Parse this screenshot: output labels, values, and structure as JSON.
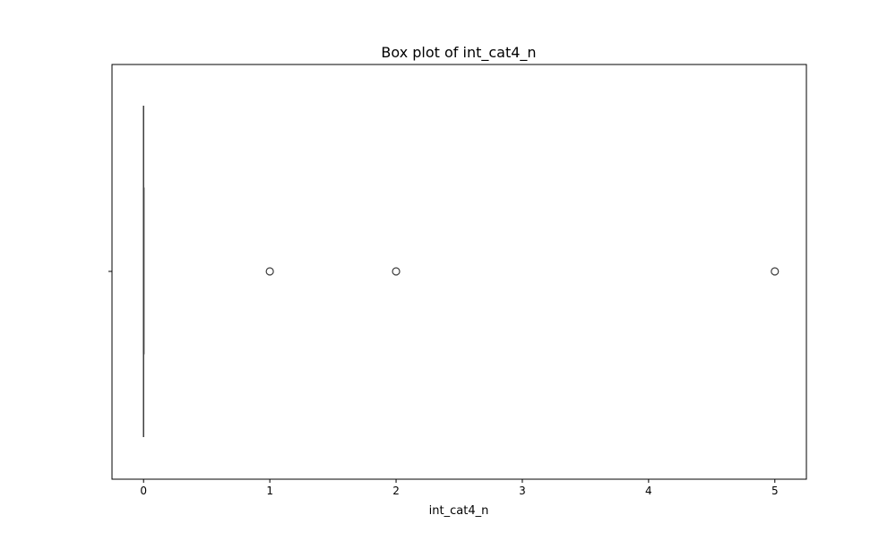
{
  "chart_data": {
    "type": "box",
    "title": "Box plot of int_cat4_n",
    "xlabel": "int_cat4_n",
    "ylabel": "",
    "orientation": "horizontal",
    "xlim": [
      -0.25,
      5.25
    ],
    "xticks": [
      0,
      1,
      2,
      3,
      4,
      5
    ],
    "xtick_labels": [
      "0",
      "1",
      "2",
      "3",
      "4",
      "5"
    ],
    "grid": false,
    "box": {
      "min_whisker": 0,
      "q1": 0,
      "median": 0,
      "q3": 0,
      "max_whisker": 0
    },
    "outliers": [
      1,
      2,
      5
    ],
    "colors": {
      "box_line": "#3d3d3d",
      "axis": "#000000",
      "background": "#ffffff"
    }
  }
}
